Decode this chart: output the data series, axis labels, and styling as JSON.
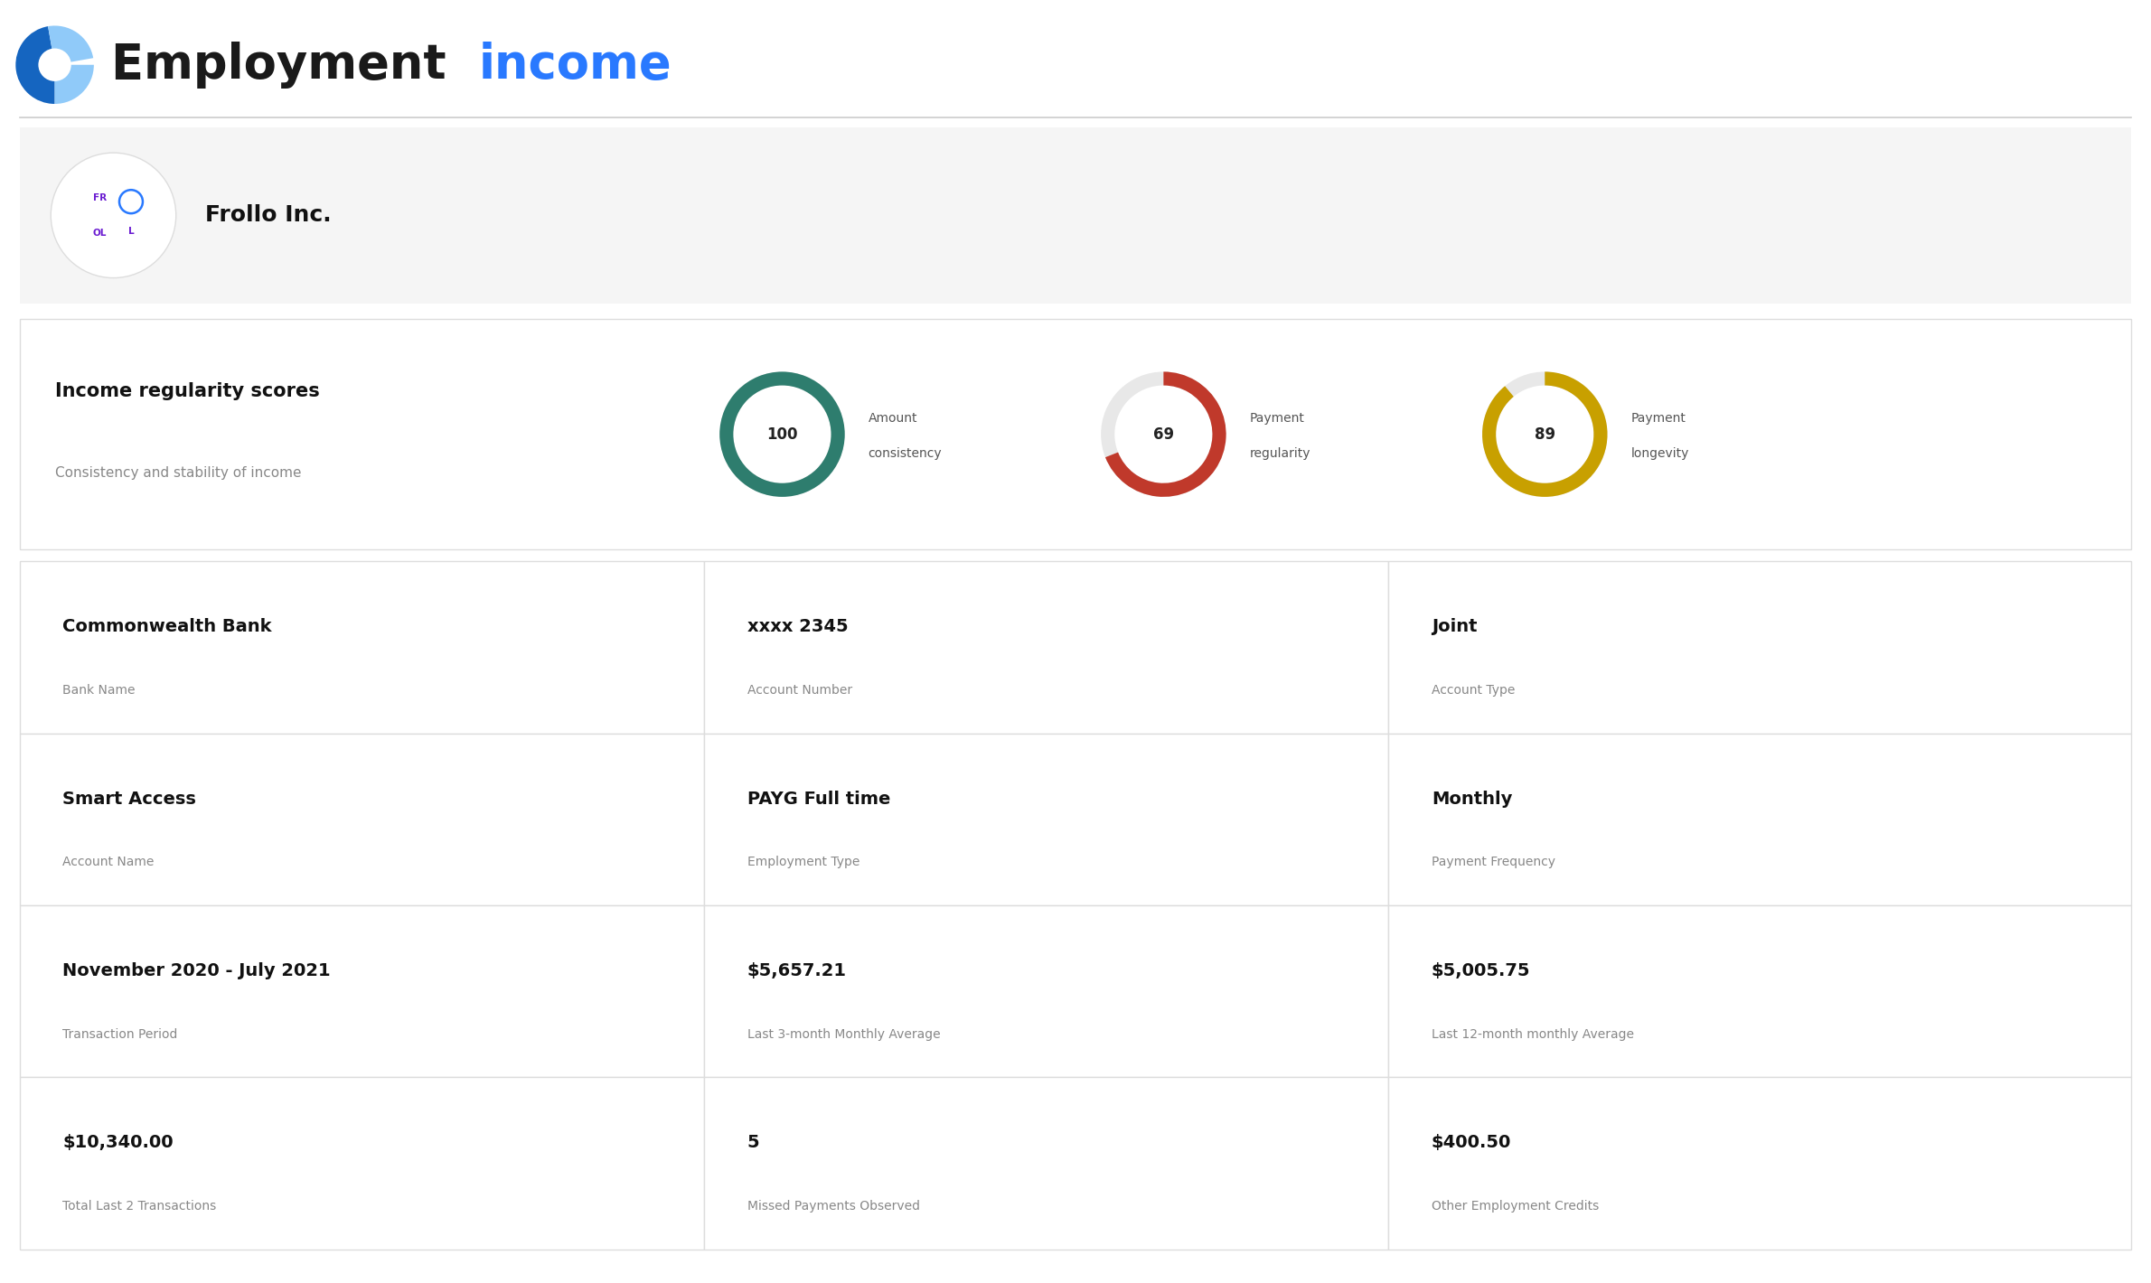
{
  "title_black": "Employment ",
  "title_blue": "income",
  "title_fontsize": 38,
  "bg_color": "#ffffff",
  "section_bg": "#f5f5f5",
  "border_color": "#dddddd",
  "company_name": "Frollo Inc.",
  "scores": [
    {
      "value": 100,
      "label1": "Amount",
      "label2": "consistency",
      "color": "#2e7d6e"
    },
    {
      "value": 69,
      "label1": "Payment",
      "label2": "regularity",
      "color": "#c0392b"
    },
    {
      "value": 89,
      "label1": "Payment",
      "label2": "longevity",
      "color": "#c8a000"
    }
  ],
  "scores_title": "Income regularity scores",
  "scores_subtitle": "Consistency and stability of income",
  "grid_items": [
    [
      {
        "value": "Commonwealth Bank",
        "label": "Bank Name"
      },
      {
        "value": "xxxx 2345",
        "label": "Account Number"
      },
      {
        "value": "Joint",
        "label": "Account Type"
      }
    ],
    [
      {
        "value": "Smart Access",
        "label": "Account Name"
      },
      {
        "value": "PAYG Full time",
        "label": "Employment Type"
      },
      {
        "value": "Monthly",
        "label": "Payment Frequency"
      }
    ],
    [
      {
        "value": "November 2020 - July 2021",
        "label": "Transaction Period"
      },
      {
        "value": "$5,657.21",
        "label": "Last 3-month Monthly Average"
      },
      {
        "value": "$5,005.75",
        "label": "Last 12-month monthly Average"
      }
    ],
    [
      {
        "value": "$10,340.00",
        "label": "Total Last 2 Transactions"
      },
      {
        "value": "5",
        "label": "Missed Payments Observed"
      },
      {
        "value": "$400.50",
        "label": "Other Employment Credits"
      }
    ]
  ],
  "icon_color_dark": "#1565c0",
  "icon_color_light": "#90caf9",
  "title_color_black": "#1a1a1a",
  "title_color_blue": "#2979ff",
  "logo_purple": "#6a1bd1",
  "logo_blue": "#2979ff",
  "value_color": "#111111",
  "label_color": "#888888",
  "company_name_color": "#111111"
}
